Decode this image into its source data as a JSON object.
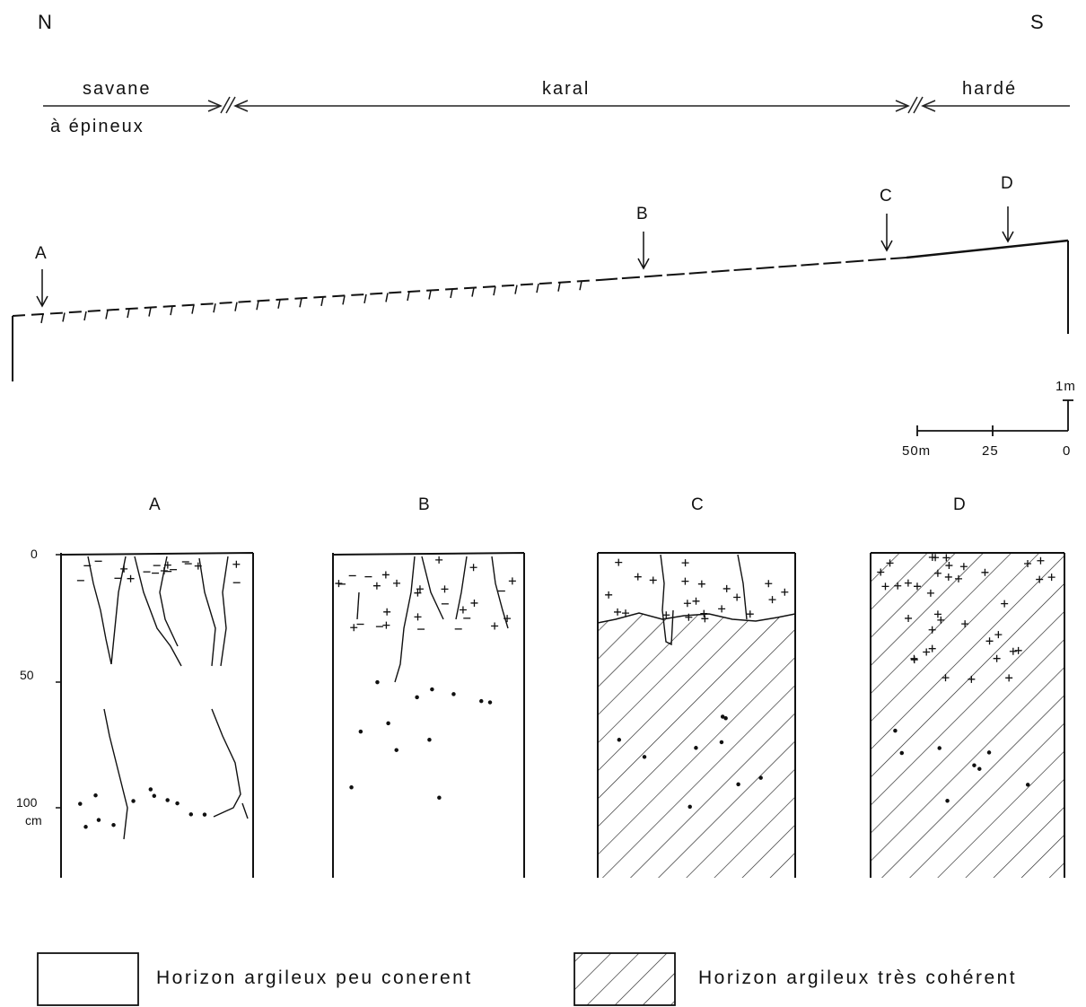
{
  "orientation": {
    "north": "N",
    "south": "S"
  },
  "zones": {
    "savane_line1": "savane",
    "savane_line2": "à épineux",
    "karal": "karal",
    "harde": "hardé"
  },
  "transect_points": [
    "A",
    "B",
    "C",
    "D"
  ],
  "vertical_scale": {
    "label": "1m"
  },
  "horizontal_scale": {
    "labels": [
      "50m",
      "25",
      "0"
    ]
  },
  "profiles": [
    {
      "name": "A"
    },
    {
      "name": "B"
    },
    {
      "name": "C"
    },
    {
      "name": "D"
    }
  ],
  "depth_axis": {
    "ticks": [
      "0",
      "50",
      "100"
    ],
    "unit": "cm"
  },
  "legend": {
    "weak": "Horizon argileux peu conerent",
    "strong": "Horizon argileux très cohérent"
  }
}
